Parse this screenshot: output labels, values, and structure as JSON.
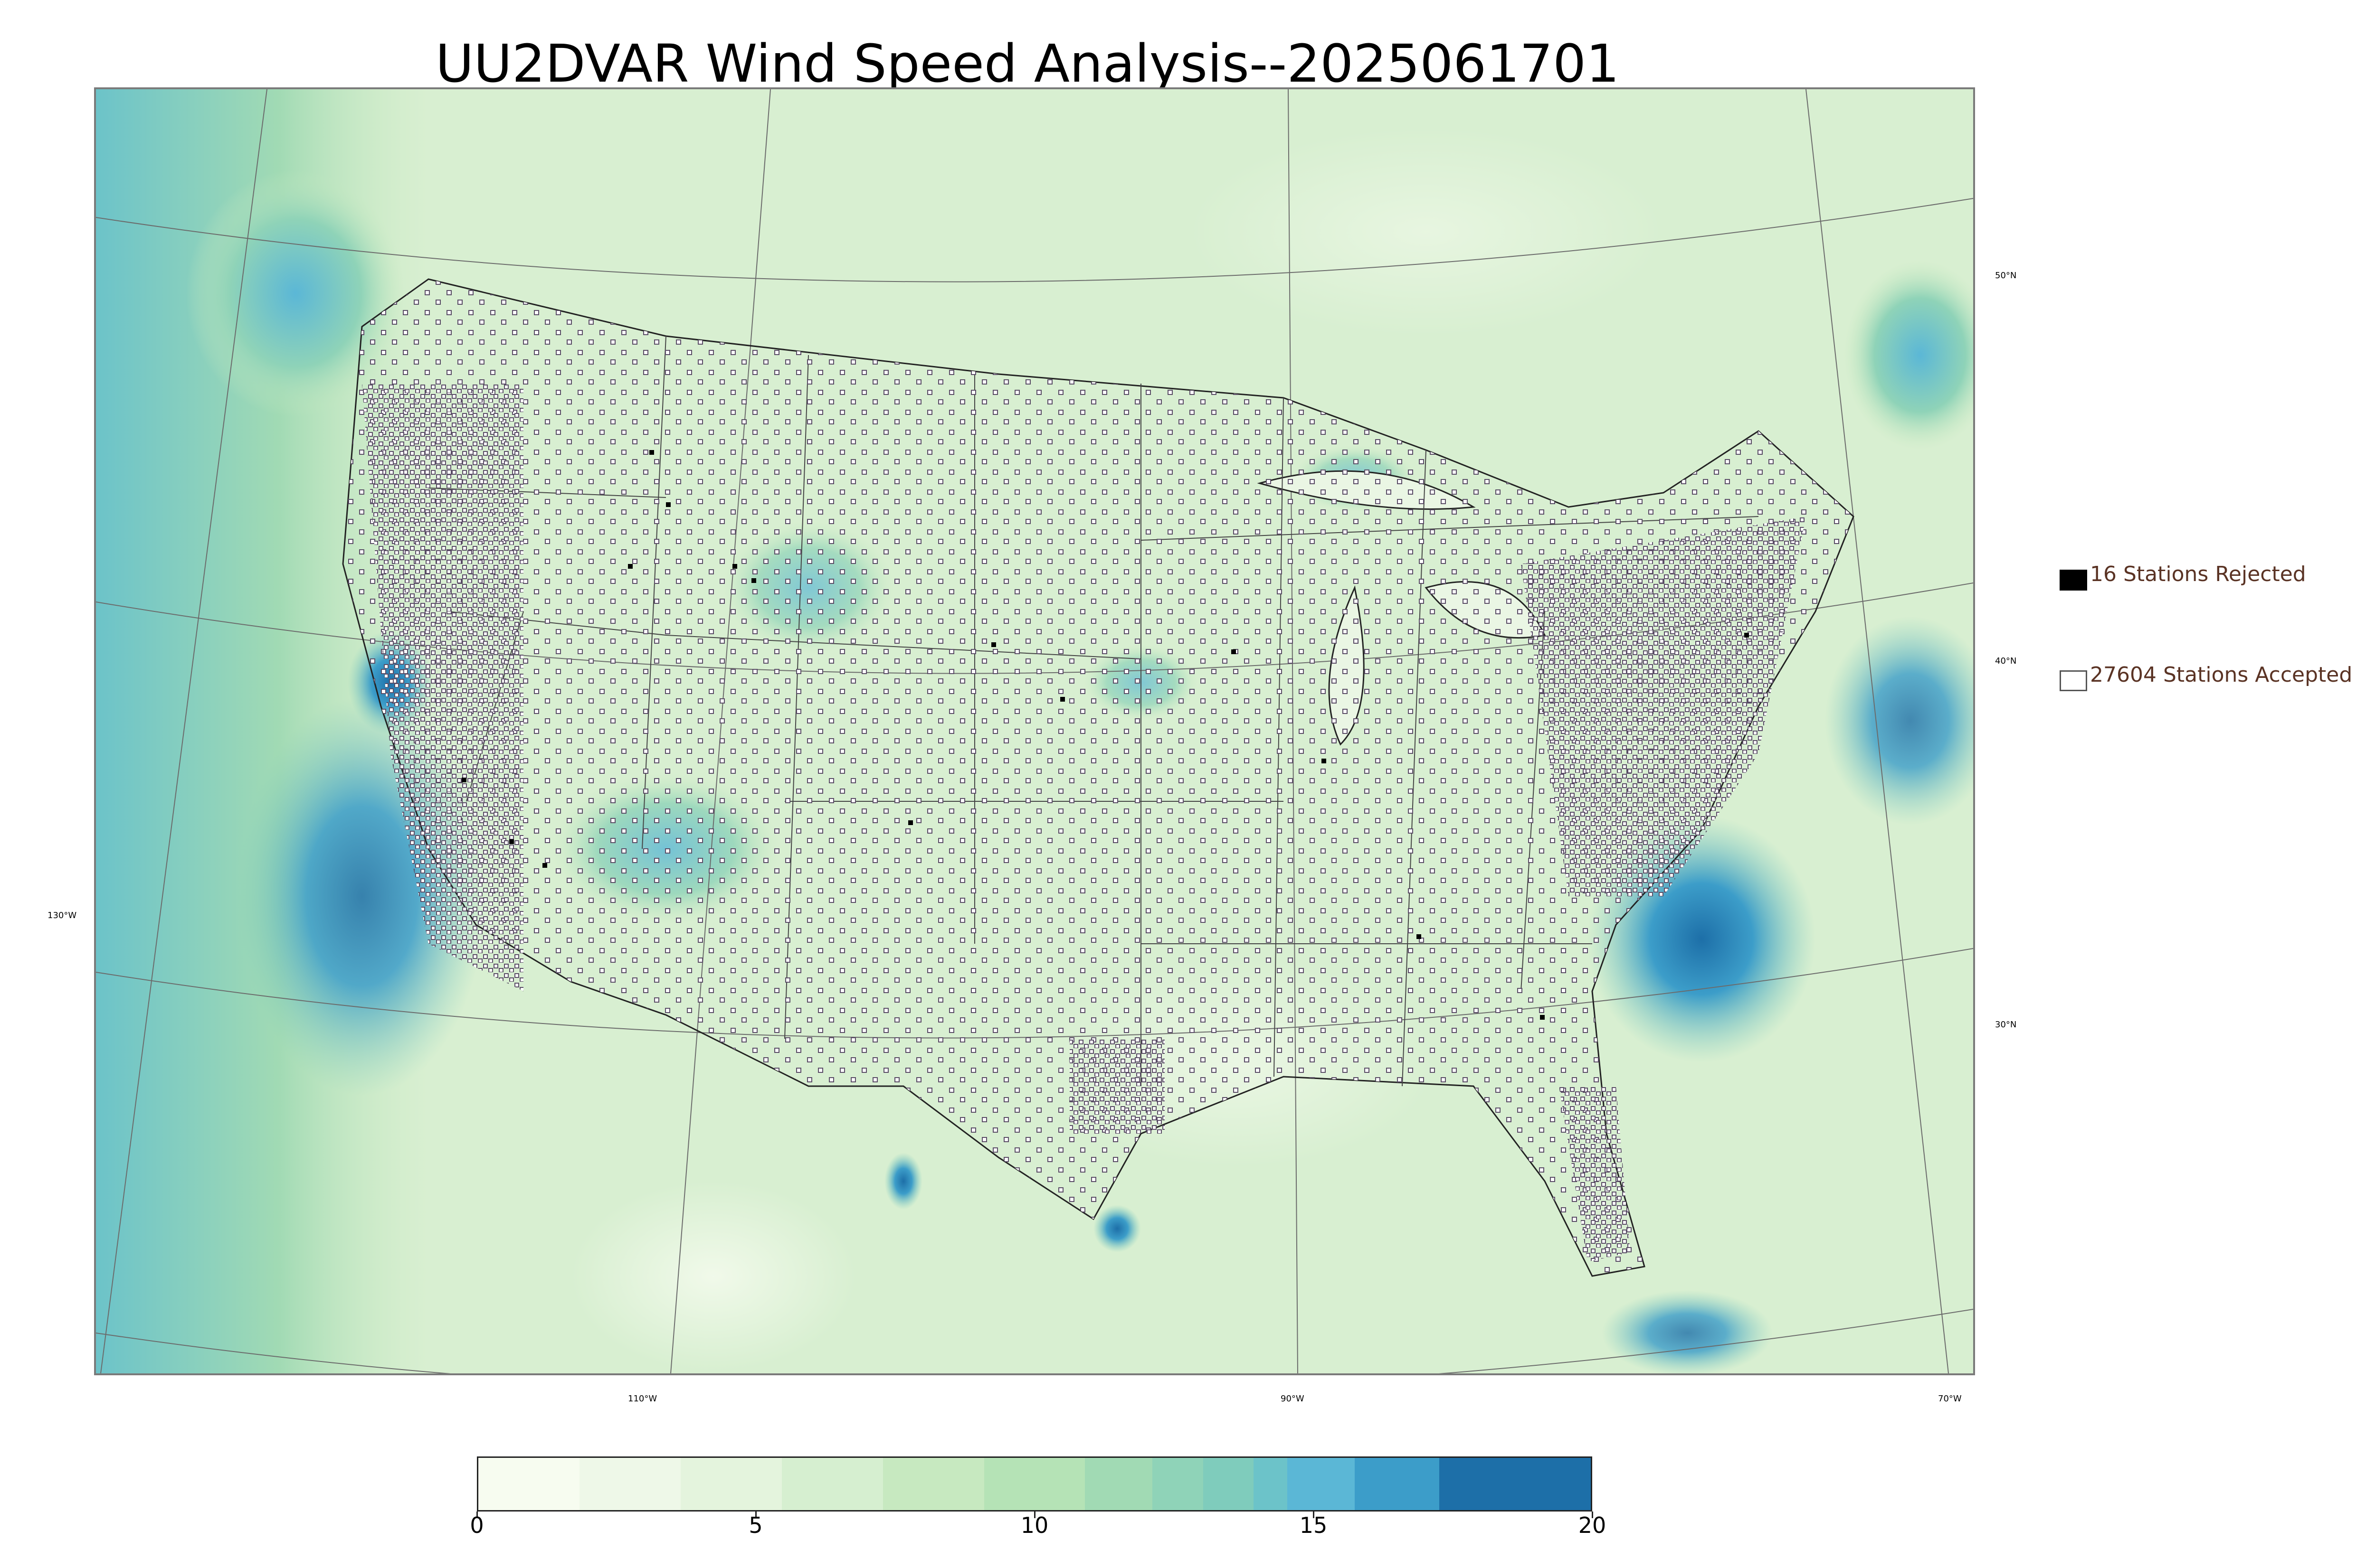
{
  "title": "UU2DVAR Wind Speed Analysis--2025061701",
  "legend": {
    "rejected": "16 Stations Rejected",
    "accepted": "27604 Stations Accepted"
  },
  "lat_labels": [
    "50°N",
    "40°N",
    "30°N"
  ],
  "lon_labels": [
    "130°W",
    "110°W",
    "90°W",
    "70°W"
  ],
  "colorbar": {
    "min": 0,
    "max": 20,
    "tick_labels": [
      "0",
      "5",
      "10",
      "15",
      "20"
    ],
    "colors": [
      "#f7fcf0",
      "#eef8e8",
      "#e4f4dd",
      "#d6efd0",
      "#c7e9c0",
      "#b5e3b6",
      "#a1dab4",
      "#8fd3b8",
      "#7fccbc",
      "#6cc3c9",
      "#5bb7d6",
      "#3c9dc9",
      "#1d6fa8"
    ]
  },
  "colors": {
    "land_background": "#dff2d8",
    "ocean_high_wind": "#3c9dc9",
    "ocean_moderate_wind": "#7fccbc",
    "station_marker": "#5a4d66"
  }
}
